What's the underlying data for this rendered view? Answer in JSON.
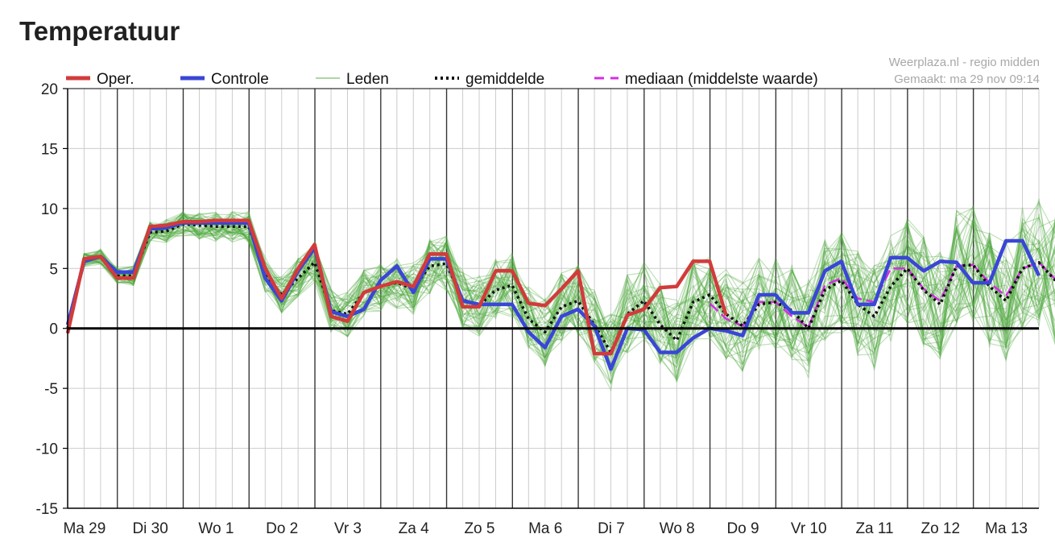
{
  "page": {
    "title": "Temperatuur"
  },
  "credits": {
    "line1": "Weerplaza.nl - regio midden",
    "line2": "Gemaakt: ma 29 nov 09:14"
  },
  "colors": {
    "oper": "#d23b3b",
    "controle": "#3a46d6",
    "leden": "#4aa53a",
    "gemiddelde": "#111111",
    "mediaan": "#d22fe3",
    "zero_line": "#000000",
    "grid": "#cccccc",
    "day_line": "#333333"
  },
  "chart_data": {
    "type": "line",
    "title": "Temperatuur",
    "xlabel": "",
    "ylabel": "",
    "ylim": [
      -15,
      20
    ],
    "yticks": [
      20,
      15,
      10,
      5,
      0,
      -5,
      -10,
      -15
    ],
    "x_steps_per_day": 4,
    "x_total_steps": 59,
    "day_labels": [
      "Ma 29",
      "Di 30",
      "Wo 1",
      "Do 2",
      "Vr 3",
      "Za 4",
      "Zo 5",
      "Ma 6",
      "Di 7",
      "Wo 8",
      "Do 9",
      "Vr 10",
      "Za 11",
      "Zo 12",
      "Ma 13"
    ],
    "legend": [
      {
        "key": "oper",
        "label": "Oper.",
        "style": "thick"
      },
      {
        "key": "controle",
        "label": "Controle",
        "style": "thick"
      },
      {
        "key": "leden",
        "label": "Leden",
        "style": "thin"
      },
      {
        "key": "gemiddelde",
        "label": "gemiddelde",
        "style": "dotted"
      },
      {
        "key": "mediaan",
        "label": "mediaan (middelste waarde)",
        "style": "dashed"
      }
    ],
    "series": [
      {
        "name": "Oper.",
        "key": "oper",
        "values": [
          -0.4,
          5.8,
          6.0,
          4.2,
          4.2,
          8.5,
          8.6,
          8.9,
          8.9,
          9.0,
          9.0,
          9.0,
          5.0,
          2.5,
          5.0,
          7.0,
          1.0,
          0.6,
          3.0,
          3.5,
          3.9,
          3.5,
          6.2,
          6.2,
          1.8,
          1.8,
          4.8,
          4.8,
          2.1,
          1.9,
          3.3,
          4.8,
          -2.1,
          -2.1,
          1.1,
          1.6,
          3.4,
          3.5,
          5.6,
          5.6,
          1.1
        ],
        "start_step": 0
      },
      {
        "name": "Controle",
        "key": "controle",
        "values": [
          0.3,
          5.6,
          6.0,
          4.7,
          4.7,
          8.3,
          8.4,
          8.8,
          8.8,
          8.8,
          8.8,
          8.8,
          4.2,
          2.3,
          4.8,
          6.7,
          1.4,
          1.0,
          1.6,
          4.0,
          5.2,
          3.0,
          5.8,
          5.8,
          2.3,
          2.0,
          2.0,
          2.0,
          -0.3,
          -1.6,
          1.0,
          1.6,
          0.2,
          -3.4,
          0.0,
          -0.1,
          -2.0,
          -2.0,
          -0.8,
          0.0,
          -0.2,
          -0.6,
          2.8,
          2.8,
          1.3,
          1.3,
          4.8,
          5.6,
          2.0,
          2.0,
          5.9,
          5.9,
          4.8,
          5.6,
          5.5,
          3.8,
          3.8,
          7.3,
          7.3,
          4.4
        ],
        "start_step": 0
      },
      {
        "name": "gemiddelde",
        "key": "gemiddelde",
        "values": [
          0.0,
          5.7,
          6.0,
          4.4,
          4.4,
          8.0,
          8.1,
          8.7,
          8.6,
          8.5,
          8.5,
          8.5,
          4.5,
          2.8,
          4.2,
          5.5,
          1.5,
          1.2,
          3.0,
          3.5,
          3.8,
          3.3,
          5.2,
          5.4,
          2.4,
          1.9,
          3.2,
          3.6,
          0.8,
          -0.3,
          1.8,
          2.3,
          0.3,
          -2.0,
          1.2,
          2.3,
          0.3,
          -1.0,
          2.2,
          2.8,
          1.2,
          0.2,
          2.0,
          2.2,
          1.5,
          0.0,
          3.2,
          4.0,
          2.0,
          1.0,
          3.5,
          5.0,
          3.2,
          2.0,
          5.2,
          5.3,
          3.5,
          2.3,
          5.0,
          5.5,
          4.0
        ],
        "start_step": 0
      },
      {
        "name": "mediaan (middelste waarde)",
        "key": "mediaan",
        "values": [
          2.1,
          0.8,
          0.2,
          2.2,
          2.2,
          1.0,
          0.1,
          3.6,
          4.2,
          2.5,
          2.2,
          5.0,
          5.0,
          3.3,
          2.3,
          5.2,
          5.3,
          3.8,
          2.7,
          5.0,
          5.5,
          4.1
        ],
        "start_step": 39
      }
    ]
  }
}
